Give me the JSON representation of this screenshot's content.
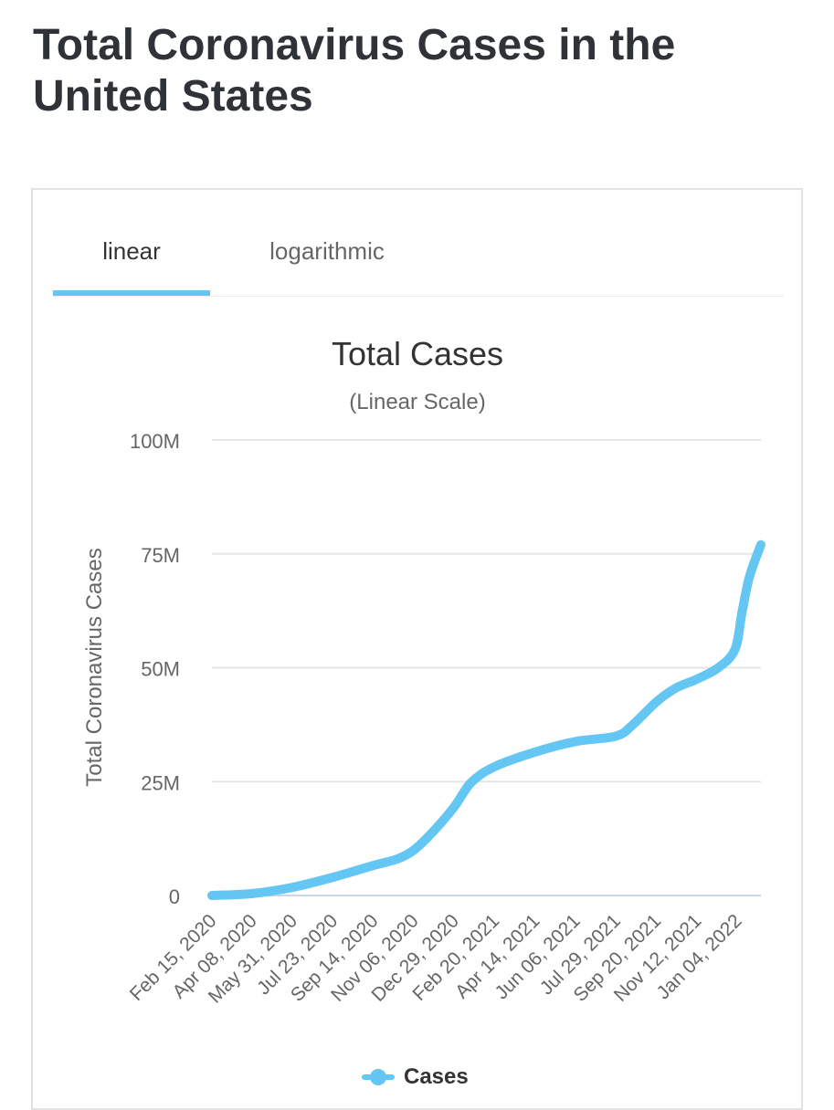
{
  "page": {
    "title": "Total Coronavirus Cases in the United States"
  },
  "tabs": [
    {
      "label": "linear",
      "active": true
    },
    {
      "label": "logarithmic",
      "active": false
    }
  ],
  "legend": {
    "label": "Cases"
  },
  "colors": {
    "series": "#63c6f3",
    "grid": "#e6e6e6",
    "title_text": "#2f3237",
    "axis_text": "#666666"
  },
  "chart_data": {
    "type": "line",
    "title": "Total Cases",
    "subtitle": "(Linear Scale)",
    "xlabel": "",
    "ylabel": "Total Coronavirus Cases",
    "ylim": [
      0,
      100000000
    ],
    "yticks": [
      {
        "value": 0,
        "label": "0"
      },
      {
        "value": 25000000,
        "label": "25M"
      },
      {
        "value": 50000000,
        "label": "50M"
      },
      {
        "value": 75000000,
        "label": "75M"
      },
      {
        "value": 100000000,
        "label": "100M"
      }
    ],
    "x_range": [
      "2020-02-15",
      "2022-02-04"
    ],
    "xticks": [
      {
        "date": "2020-02-15",
        "label": "Feb 15, 2020"
      },
      {
        "date": "2020-04-08",
        "label": "Apr 08, 2020"
      },
      {
        "date": "2020-05-31",
        "label": "May 31, 2020"
      },
      {
        "date": "2020-07-23",
        "label": "Jul 23, 2020"
      },
      {
        "date": "2020-09-14",
        "label": "Sep 14, 2020"
      },
      {
        "date": "2020-11-06",
        "label": "Nov 06, 2020"
      },
      {
        "date": "2020-12-29",
        "label": "Dec 29, 2020"
      },
      {
        "date": "2021-02-20",
        "label": "Feb 20, 2021"
      },
      {
        "date": "2021-04-14",
        "label": "Apr 14, 2021"
      },
      {
        "date": "2021-06-06",
        "label": "Jun 06, 2021"
      },
      {
        "date": "2021-07-29",
        "label": "Jul 29, 2021"
      },
      {
        "date": "2021-09-20",
        "label": "Sep 20, 2021"
      },
      {
        "date": "2021-11-12",
        "label": "Nov 12, 2021"
      },
      {
        "date": "2022-01-04",
        "label": "Jan 04, 2022"
      }
    ],
    "series": [
      {
        "name": "Cases",
        "points": [
          [
            "2020-02-15",
            0
          ],
          [
            "2020-04-08",
            430000
          ],
          [
            "2020-05-31",
            1800000
          ],
          [
            "2020-07-23",
            4000000
          ],
          [
            "2020-09-14",
            6600000
          ],
          [
            "2020-10-15",
            8000000
          ],
          [
            "2020-11-06",
            10000000
          ],
          [
            "2020-12-01",
            14000000
          ],
          [
            "2020-12-29",
            19500000
          ],
          [
            "2021-01-20",
            24800000
          ],
          [
            "2021-02-20",
            28300000
          ],
          [
            "2021-04-14",
            31500000
          ],
          [
            "2021-06-06",
            33800000
          ],
          [
            "2021-07-29",
            35000000
          ],
          [
            "2021-08-20",
            37500000
          ],
          [
            "2021-09-20",
            42500000
          ],
          [
            "2021-10-15",
            45500000
          ],
          [
            "2021-11-12",
            47500000
          ],
          [
            "2021-12-10",
            50000000
          ],
          [
            "2022-01-01",
            54000000
          ],
          [
            "2022-01-10",
            62000000
          ],
          [
            "2022-01-20",
            70000000
          ],
          [
            "2022-02-04",
            77000000
          ]
        ]
      }
    ]
  }
}
